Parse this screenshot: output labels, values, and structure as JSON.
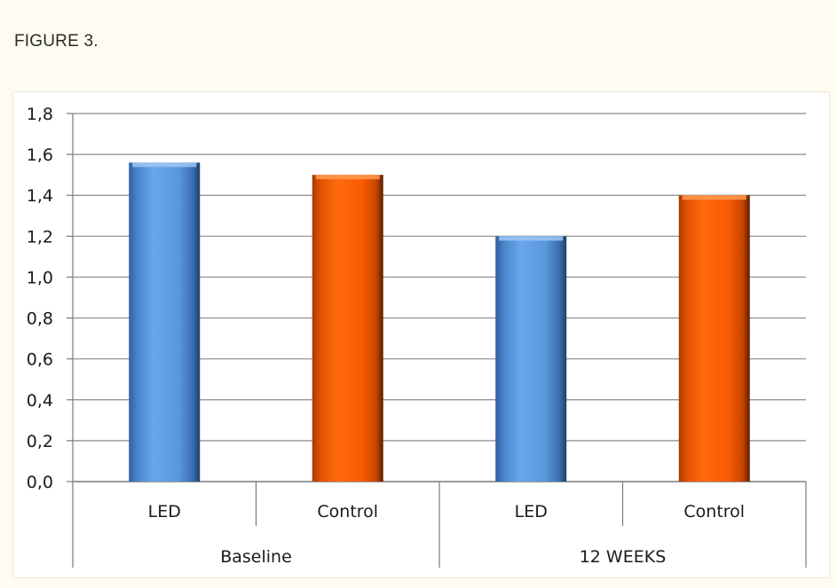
{
  "figure_label": "FIGURE 3.",
  "chart_data": {
    "type": "bar",
    "groups": [
      "Baseline",
      "12 WEEKS"
    ],
    "categories": [
      "LED",
      "Control"
    ],
    "series": [
      {
        "name": "",
        "group": "Baseline",
        "category": "LED",
        "value": 1.56,
        "color": "#5b9bd5"
      },
      {
        "name": "",
        "group": "Baseline",
        "category": "Control",
        "value": 1.5,
        "color": "#ff5a00"
      },
      {
        "name": "",
        "group": "12 WEEKS",
        "category": "LED",
        "value": 1.2,
        "color": "#5b9bd5"
      },
      {
        "name": "",
        "group": "12 WEEKS",
        "category": "Control",
        "value": 1.4,
        "color": "#ff5a00"
      }
    ],
    "yticks": [
      "0,0",
      "0,2",
      "0,4",
      "0,6",
      "0,8",
      "1,0",
      "1,2",
      "1,4",
      "1,6",
      "1,8"
    ],
    "ylim": [
      0,
      1.8
    ],
    "grid": true,
    "title": "",
    "xlabel": "",
    "ylabel": ""
  }
}
